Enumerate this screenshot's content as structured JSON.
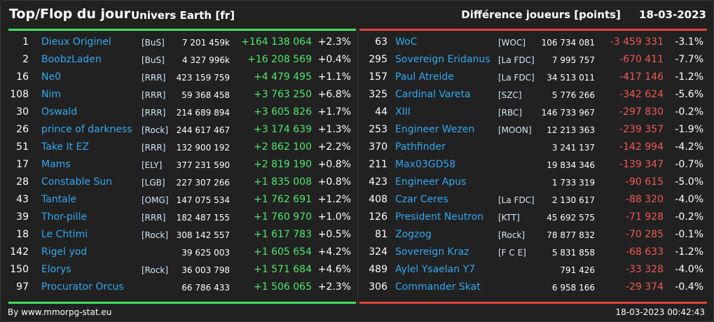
{
  "header": {
    "title": "Top/Flop du jour",
    "subtitle": "Univers Earth [fr]",
    "metric": "Différence joueurs [points]",
    "date": "18-03-2023"
  },
  "colors": {
    "top_accent": "#43e061",
    "flop_accent": "#e0443e",
    "name": "#33a8f0"
  },
  "top": [
    {
      "rank": "1",
      "name": "Dieux Originel",
      "ally": "[BuS]",
      "points": "7 201 459k",
      "diff": "+164 138 064",
      "pct": "+2.3%"
    },
    {
      "rank": "2",
      "name": "BoobzLaden",
      "ally": "[BuS]",
      "points": "4 327 996k",
      "diff": "+16 208 569",
      "pct": "+0.4%"
    },
    {
      "rank": "16",
      "name": "Ne0",
      "ally": "[RRR]",
      "points": "423 159 759",
      "diff": "+4 479 495",
      "pct": "+1.1%"
    },
    {
      "rank": "108",
      "name": "Nim",
      "ally": "[RRR]",
      "points": "59 368 458",
      "diff": "+3 763 250",
      "pct": "+6.8%"
    },
    {
      "rank": "30",
      "name": "Oswald",
      "ally": "[RRR]",
      "points": "214 689 894",
      "diff": "+3 605 826",
      "pct": "+1.7%"
    },
    {
      "rank": "26",
      "name": "prince of darkness",
      "ally": "[Rock]",
      "points": "244 617 467",
      "diff": "+3 174 639",
      "pct": "+1.3%"
    },
    {
      "rank": "51",
      "name": "Take It EZ",
      "ally": "[RRR]",
      "points": "132 900 192",
      "diff": "+2 862 100",
      "pct": "+2.2%"
    },
    {
      "rank": "17",
      "name": "Mams",
      "ally": "[ELY]",
      "points": "377 231 590",
      "diff": "+2 819 190",
      "pct": "+0.8%"
    },
    {
      "rank": "28",
      "name": "Constable Sun",
      "ally": "[LGB]",
      "points": "227 307 266",
      "diff": "+1 835 008",
      "pct": "+0.8%"
    },
    {
      "rank": "43",
      "name": "Tantale",
      "ally": "[OMG]",
      "points": "147 075 534",
      "diff": "+1 762 691",
      "pct": "+1.2%"
    },
    {
      "rank": "39",
      "name": "Thor-pille",
      "ally": "[RRR]",
      "points": "182 487 155",
      "diff": "+1 760 970",
      "pct": "+1.0%"
    },
    {
      "rank": "18",
      "name": "Le Chtimi",
      "ally": "[Rock]",
      "points": "308 142 557",
      "diff": "+1 617 783",
      "pct": "+0.5%"
    },
    {
      "rank": "142",
      "name": "Rigel yod",
      "ally": "",
      "points": "39 625 003",
      "diff": "+1 605 654",
      "pct": "+4.2%"
    },
    {
      "rank": "150",
      "name": "Elorys",
      "ally": "[Rock]",
      "points": "36 003 798",
      "diff": "+1 571 684",
      "pct": "+4.6%"
    },
    {
      "rank": "97",
      "name": "Procurator Orcus",
      "ally": "",
      "points": "66 786 433",
      "diff": "+1 506 065",
      "pct": "+2.3%"
    }
  ],
  "flop": [
    {
      "rank": "63",
      "name": "WoC",
      "ally": "[WOC]",
      "points": "106 734 081",
      "diff": "-3 459 331",
      "pct": "-3.1%"
    },
    {
      "rank": "295",
      "name": "Sovereign Eridanus",
      "ally": "[La FDC]",
      "points": "7 995 757",
      "diff": "-670 411",
      "pct": "-7.7%"
    },
    {
      "rank": "157",
      "name": "Paul Atreide",
      "ally": "[La FDC]",
      "points": "34 513 011",
      "diff": "-417 146",
      "pct": "-1.2%"
    },
    {
      "rank": "325",
      "name": "Cardinal Vareta",
      "ally": "[SZC]",
      "points": "5 776 266",
      "diff": "-342 624",
      "pct": "-5.6%"
    },
    {
      "rank": "44",
      "name": "XIII",
      "ally": "[RBC]",
      "points": "146 733 967",
      "diff": "-297 830",
      "pct": "-0.2%"
    },
    {
      "rank": "253",
      "name": "Engineer Wezen",
      "ally": "[MOON]",
      "points": "12 213 363",
      "diff": "-239 357",
      "pct": "-1.9%"
    },
    {
      "rank": "370",
      "name": "Pathfinder",
      "ally": "",
      "points": "3 241 137",
      "diff": "-142 994",
      "pct": "-4.2%"
    },
    {
      "rank": "211",
      "name": "Max03GD58",
      "ally": "",
      "points": "19 834 346",
      "diff": "-139 347",
      "pct": "-0.7%"
    },
    {
      "rank": "423",
      "name": "Engineer Apus",
      "ally": "",
      "points": "1 733 319",
      "diff": "-90 615",
      "pct": "-5.0%"
    },
    {
      "rank": "408",
      "name": "Czar Ceres",
      "ally": "[La FDC]",
      "points": "2 130 617",
      "diff": "-88 320",
      "pct": "-4.0%"
    },
    {
      "rank": "126",
      "name": "President Neutron",
      "ally": "[KTT]",
      "points": "45 692 575",
      "diff": "-71 928",
      "pct": "-0.2%"
    },
    {
      "rank": "81",
      "name": "Zogzog",
      "ally": "[Rock]",
      "points": "78 877 832",
      "diff": "-70 285",
      "pct": "-0.1%"
    },
    {
      "rank": "324",
      "name": "Sovereign Kraz",
      "ally": "[F C E]",
      "points": "5 831 858",
      "diff": "-68 633",
      "pct": "-1.2%"
    },
    {
      "rank": "489",
      "name": "Aylel Ysaelan Y7",
      "ally": "",
      "points": "791 426",
      "diff": "-33 328",
      "pct": "-4.0%"
    },
    {
      "rank": "306",
      "name": "Commander Skat",
      "ally": "",
      "points": "6 958 166",
      "diff": "-29 374",
      "pct": "-0.4%"
    }
  ],
  "footer": {
    "credit": "By www.mmorpg-stat.eu",
    "timestamp": "18-03-2023 00:42:43"
  }
}
